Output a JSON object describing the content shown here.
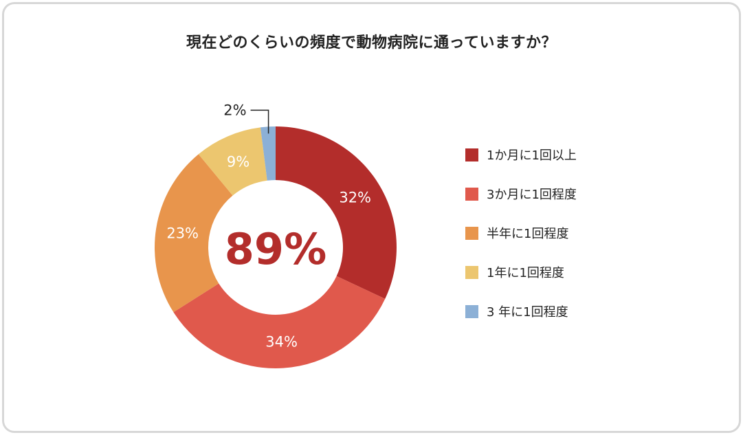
{
  "title": "現在どのくらいの頻度で動物病院に通っていますか？",
  "center_text": "89%",
  "colors": {
    "dark_red": "#b32d2b",
    "red": "#e0594c",
    "orange": "#e8954c",
    "yellow": "#ecc66f",
    "blue": "#8cb0d6",
    "text": "#222222"
  },
  "legend": [
    {
      "label": "1か月に1回以上",
      "color": "#b32d2b"
    },
    {
      "label": "3か月に1回程度",
      "color": "#e0594c"
    },
    {
      "label": "半年に1回程度",
      "color": "#e8954c"
    },
    {
      "label": "1年に1回程度",
      "color": "#ecc66f"
    },
    {
      "label": "3 年に1回程度",
      "color": "#8cb0d6"
    }
  ],
  "chart_data": {
    "type": "pie",
    "title": "現在どのくらいの頻度で動物病院に通っていますか？",
    "center_text": "89%",
    "donut": true,
    "legend_position": "right",
    "categories": [
      "1か月に1回以上",
      "3か月に1回程度",
      "半年に1回程度",
      "1年に1回程度",
      "3 年に1回程度"
    ],
    "values": [
      32,
      34,
      23,
      9,
      2
    ],
    "data_labels": [
      "32%",
      "34%",
      "23%",
      "9%",
      "2%"
    ],
    "colors": [
      "#b32d2b",
      "#e0594c",
      "#e8954c",
      "#ecc66f",
      "#8cb0d6"
    ]
  }
}
